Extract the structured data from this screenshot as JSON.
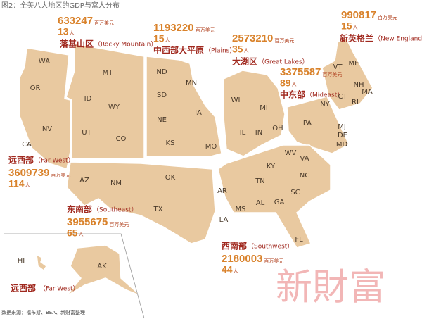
{
  "title": "图2：全美八大地区的GDP与富人分布",
  "source": "数据来源：福布斯、BEA、新财富整理",
  "watermark": "新財富",
  "gdp_unit": "百万美元",
  "person_unit": "人",
  "regions": [
    {
      "name": "落基山区",
      "en": "（Rocky Mountain）",
      "gdp": 633247,
      "count": 13
    },
    {
      "name": "中西部大平原",
      "en": "（Plains）",
      "gdp": 1193220,
      "count": 15
    },
    {
      "name": "大湖区",
      "en": "（Great Lakes）",
      "gdp": 2573210,
      "count": 35
    },
    {
      "name": "新英格兰",
      "en": "（New England）",
      "gdp": 990817,
      "count": 15
    },
    {
      "name": "中东部",
      "en": "（Mideast）",
      "gdp": 3375587,
      "count": 89
    },
    {
      "name": "远西部",
      "en": "（Far West）",
      "gdp": 3609739,
      "count": 114
    },
    {
      "name": "东南部",
      "en": "（Southeast）",
      "gdp": 3955675,
      "count": 65
    },
    {
      "name": "西南部",
      "en": "（Southwest）",
      "gdp": 2180003,
      "count": 44
    }
  ],
  "states": [
    "WA",
    "OR",
    "CA",
    "NV",
    "ID",
    "MT",
    "WY",
    "UT",
    "CO",
    "AZ",
    "NM",
    "ND",
    "SD",
    "NE",
    "KS",
    "MN",
    "IA",
    "MO",
    "WI",
    "MI",
    "IL",
    "IN",
    "OH",
    "PA",
    "NY",
    "VT",
    "NH",
    "ME",
    "MA",
    "CT",
    "RI",
    "MJ",
    "DE",
    "MD",
    "WV",
    "KY",
    "VA",
    "NC",
    "TN",
    "SC",
    "AR",
    "MS",
    "AL",
    "GA",
    "LA",
    "FL",
    "OK",
    "TX",
    "HI",
    "AK"
  ]
}
